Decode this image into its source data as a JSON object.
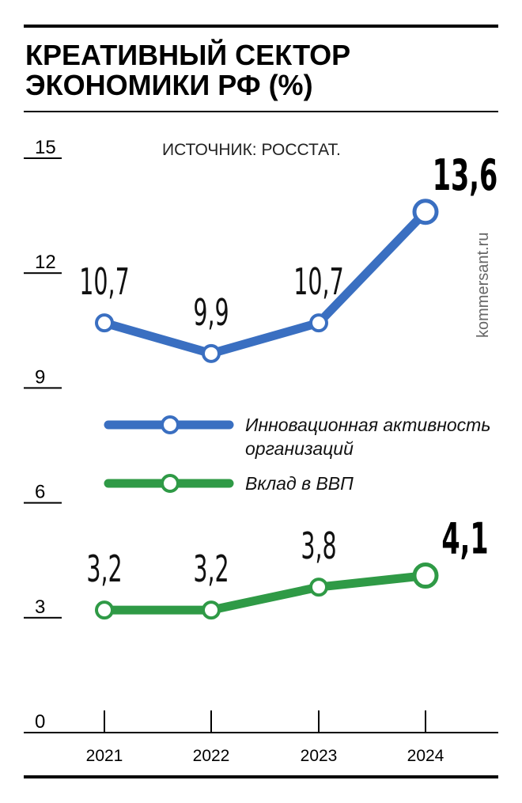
{
  "title_lines": [
    "КРЕАТИВНЫЙ СЕКТОР",
    "ЭКОНОМИКИ РФ (%)"
  ],
  "source": "ИСТОЧНИК: РОССТАТ.",
  "credit": "kommersant.ru",
  "chart_data": {
    "type": "line",
    "title": "КРЕАТИВНЫЙ СЕКТОР ЭКОНОМИКИ РФ (%)",
    "categories": [
      "2021",
      "2022",
      "2023",
      "2024"
    ],
    "ylim": [
      0,
      15
    ],
    "yticks": [
      0,
      3,
      6,
      9,
      12,
      15
    ],
    "grid": false,
    "legend_position": "middle",
    "series": [
      {
        "name": "Инновационная активность организаций",
        "legend_lines": [
          "Инновационная активность",
          "организаций"
        ],
        "color": "#3a6fc1",
        "values": [
          10.7,
          9.9,
          10.7,
          13.6
        ],
        "labels": [
          "10,7",
          "9,9",
          "10,7",
          "13,6"
        ]
      },
      {
        "name": "Вклад в ВВП",
        "legend_lines": [
          "Вклад в ВВП"
        ],
        "color": "#2f9a46",
        "values": [
          3.2,
          3.2,
          3.8,
          4.1
        ],
        "labels": [
          "3,2",
          "3,2",
          "3,8",
          "4,1"
        ]
      }
    ]
  }
}
